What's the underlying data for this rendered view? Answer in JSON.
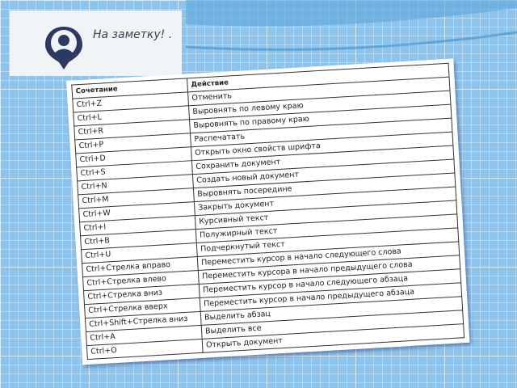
{
  "logo": {
    "text": "На заметку! .",
    "icon": "person-pin-icon"
  },
  "table": {
    "headers": [
      "Сочетание",
      "Действие"
    ],
    "rows": [
      [
        "Ctrl+Z",
        "Отменить"
      ],
      [
        "Ctrl+L",
        "Выровнять по левому краю"
      ],
      [
        "Ctrl+R",
        "Выровнять по правому краю"
      ],
      [
        "Ctrl+P",
        "Распечатать"
      ],
      [
        "Ctrl+D",
        "Открыть окно свойств шрифта"
      ],
      [
        "Ctrl+S",
        "Сохранить документ"
      ],
      [
        "Ctrl+N",
        "Создать новый документ"
      ],
      [
        "Ctrl+M",
        "Выровнять посередине"
      ],
      [
        "Ctrl+W",
        "Закрыть документ"
      ],
      [
        "Ctrl+I",
        "Курсивный текст"
      ],
      [
        "Ctrl+B",
        "Полужирный текст"
      ],
      [
        "Ctrl+U",
        "Подчеркнутый текст"
      ],
      [
        "Ctrl+Стрелка вправо",
        "Переместить курсор в начало следующего слова"
      ],
      [
        "Ctrl+Стрелка влево",
        "Переместить курсора в начало предыдущего слова"
      ],
      [
        "Ctrl+Стрелка вниз",
        "Переместить курсор в начало следующего абзаца"
      ],
      [
        "Ctrl+Стрелка вверх",
        "Переместить курсор в начало предыдущего абзаца"
      ],
      [
        "Ctrl+Shift+Стрелка вниз",
        "Выделить абзац"
      ],
      [
        "Ctrl+A",
        "Выделить все"
      ],
      [
        "Ctrl+O",
        "Открыть документ"
      ]
    ]
  }
}
